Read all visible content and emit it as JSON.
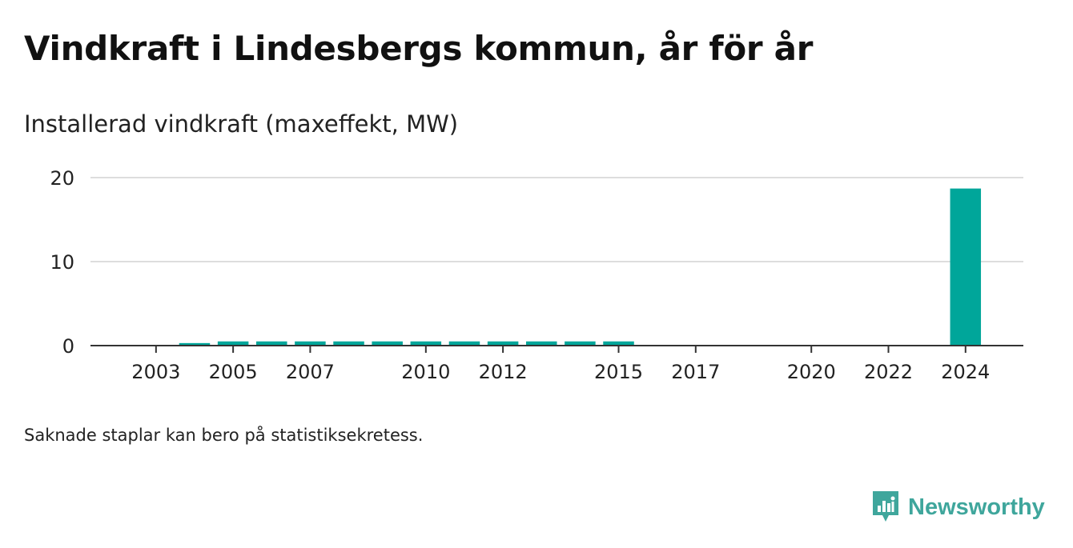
{
  "title": "Vindkraft i Lindesbergs kommun, år för år",
  "subtitle": "Installerad vindkraft (maxeffekt, MW)",
  "note": "Saknade staplar kan bero på statistiksekretess.",
  "brand": {
    "name": "Newsworthy",
    "icon": "newsworthy-logo-icon",
    "color": "#3fa69c"
  },
  "chart_data": {
    "type": "bar",
    "title": "",
    "xlabel": "",
    "ylabel": "Installerad vindkraft (maxeffekt, MW)",
    "ylim": [
      0,
      20
    ],
    "yticks": [
      "0",
      "10",
      "20"
    ],
    "grid": true,
    "bar_color": "#00a69a",
    "x_range": [
      2001.3,
      2025.5
    ],
    "xtick_labels": [
      "2003",
      "2005",
      "2007",
      "2010",
      "2012",
      "2015",
      "2017",
      "2020",
      "2022",
      "2024"
    ],
    "x": [
      2004,
      2005,
      2006,
      2007,
      2008,
      2009,
      2010,
      2011,
      2012,
      2013,
      2014,
      2015,
      2024
    ],
    "values": [
      0.3,
      0.5,
      0.5,
      0.5,
      0.5,
      0.5,
      0.5,
      0.5,
      0.5,
      0.5,
      0.5,
      0.5,
      18.7
    ]
  }
}
